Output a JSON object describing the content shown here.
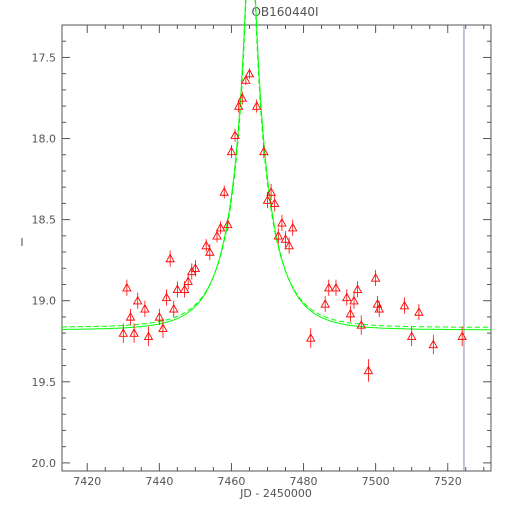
{
  "chart_data": {
    "type": "scatter",
    "title": "OB160440I",
    "xlabel": "JD - 2450000",
    "ylabel": "I",
    "xlim": [
      7413,
      7532
    ],
    "ylim": [
      20.05,
      17.3
    ],
    "y_inverted": true,
    "xticks": [
      7420,
      7440,
      7460,
      7480,
      7500,
      7520
    ],
    "yticks": [
      17.5,
      18.0,
      18.5,
      19.0,
      19.5,
      20.0
    ],
    "vertical_line_x": 7524.5,
    "colors": {
      "points": "#ff0000",
      "model": "#00ff00",
      "axes": "#555555",
      "vline": "#8888aa"
    },
    "points": [
      {
        "x": 7430,
        "y": 19.2,
        "err": 0.06
      },
      {
        "x": 7431,
        "y": 18.92,
        "err": 0.05
      },
      {
        "x": 7432,
        "y": 19.1,
        "err": 0.05
      },
      {
        "x": 7433,
        "y": 19.2,
        "err": 0.06
      },
      {
        "x": 7434,
        "y": 19.0,
        "err": 0.05
      },
      {
        "x": 7436,
        "y": 19.05,
        "err": 0.05
      },
      {
        "x": 7437,
        "y": 19.22,
        "err": 0.06
      },
      {
        "x": 7440,
        "y": 19.1,
        "err": 0.05
      },
      {
        "x": 7441,
        "y": 19.17,
        "err": 0.06
      },
      {
        "x": 7442,
        "y": 18.98,
        "err": 0.05
      },
      {
        "x": 7443,
        "y": 18.74,
        "err": 0.05
      },
      {
        "x": 7444,
        "y": 19.05,
        "err": 0.05
      },
      {
        "x": 7445,
        "y": 18.93,
        "err": 0.05
      },
      {
        "x": 7447,
        "y": 18.93,
        "err": 0.05
      },
      {
        "x": 7448,
        "y": 18.88,
        "err": 0.05
      },
      {
        "x": 7449,
        "y": 18.82,
        "err": 0.05
      },
      {
        "x": 7450,
        "y": 18.8,
        "err": 0.05
      },
      {
        "x": 7453,
        "y": 18.66,
        "err": 0.04
      },
      {
        "x": 7454,
        "y": 18.7,
        "err": 0.05
      },
      {
        "x": 7456,
        "y": 18.6,
        "err": 0.04
      },
      {
        "x": 7457,
        "y": 18.55,
        "err": 0.04
      },
      {
        "x": 7458,
        "y": 18.33,
        "err": 0.04
      },
      {
        "x": 7459,
        "y": 18.53,
        "err": 0.04
      },
      {
        "x": 7460,
        "y": 18.08,
        "err": 0.04
      },
      {
        "x": 7461,
        "y": 17.98,
        "err": 0.04
      },
      {
        "x": 7462,
        "y": 17.8,
        "err": 0.04
      },
      {
        "x": 7463,
        "y": 17.75,
        "err": 0.04
      },
      {
        "x": 7464,
        "y": 17.64,
        "err": 0.03
      },
      {
        "x": 7465,
        "y": 17.6,
        "err": 0.03
      },
      {
        "x": 7467,
        "y": 17.8,
        "err": 0.04
      },
      {
        "x": 7469,
        "y": 18.08,
        "err": 0.04
      },
      {
        "x": 7470,
        "y": 18.38,
        "err": 0.05
      },
      {
        "x": 7471,
        "y": 18.33,
        "err": 0.05
      },
      {
        "x": 7472,
        "y": 18.4,
        "err": 0.05
      },
      {
        "x": 7473,
        "y": 18.6,
        "err": 0.05
      },
      {
        "x": 7474,
        "y": 18.52,
        "err": 0.05
      },
      {
        "x": 7475,
        "y": 18.62,
        "err": 0.05
      },
      {
        "x": 7476,
        "y": 18.66,
        "err": 0.05
      },
      {
        "x": 7477,
        "y": 18.55,
        "err": 0.05
      },
      {
        "x": 7482,
        "y": 19.23,
        "err": 0.06
      },
      {
        "x": 7486,
        "y": 19.02,
        "err": 0.05
      },
      {
        "x": 7487,
        "y": 18.92,
        "err": 0.05
      },
      {
        "x": 7489,
        "y": 18.92,
        "err": 0.05
      },
      {
        "x": 7492,
        "y": 18.98,
        "err": 0.05
      },
      {
        "x": 7493,
        "y": 19.08,
        "err": 0.05
      },
      {
        "x": 7494,
        "y": 19.0,
        "err": 0.05
      },
      {
        "x": 7495,
        "y": 18.93,
        "err": 0.05
      },
      {
        "x": 7496,
        "y": 19.15,
        "err": 0.06
      },
      {
        "x": 7498,
        "y": 19.43,
        "err": 0.07
      },
      {
        "x": 7500,
        "y": 18.86,
        "err": 0.05
      },
      {
        "x": 7500.5,
        "y": 19.02,
        "err": 0.05
      },
      {
        "x": 7501,
        "y": 19.05,
        "err": 0.05
      },
      {
        "x": 7508,
        "y": 19.03,
        "err": 0.05
      },
      {
        "x": 7510,
        "y": 19.22,
        "err": 0.06
      },
      {
        "x": 7512,
        "y": 19.07,
        "err": 0.05
      },
      {
        "x": 7516,
        "y": 19.27,
        "err": 0.06
      },
      {
        "x": 7524,
        "y": 19.22,
        "err": 0.06
      }
    ],
    "model": {
      "t0": 7465.3,
      "tE": 10.5,
      "u0": 0.082,
      "base": 19.18,
      "fs": 1.0
    },
    "model_dashed": {
      "t0": 7465.3,
      "tE": 11.0,
      "u0": 0.075,
      "base": 19.165,
      "fs": 0.86
    }
  }
}
